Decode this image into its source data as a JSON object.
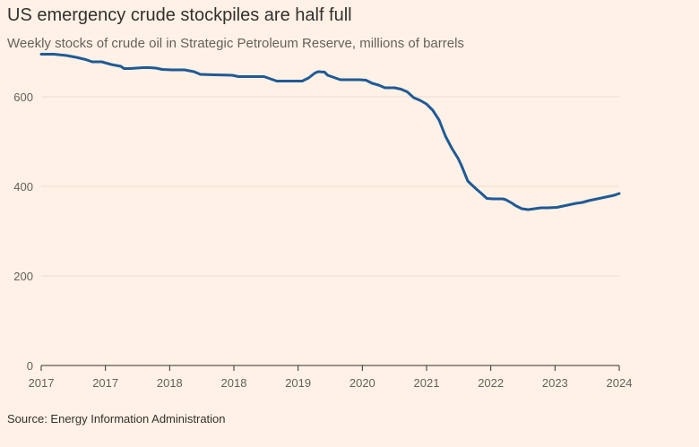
{
  "header": {
    "title": "US emergency crude stockpiles are half full",
    "subtitle": "Weekly stocks of crude oil in Strategic Petroleum Reserve, millions of barrels"
  },
  "footer": {
    "source": "Source: Energy Information Administration"
  },
  "colors": {
    "background": "#FFF1E5",
    "line": "#1F5A96",
    "grid": "#E9DED5",
    "axis": "#33302E",
    "text": "#66605C"
  },
  "chart_data": {
    "type": "line",
    "title": "US emergency crude stockpiles are half full",
    "subtitle": "Weekly stocks of crude oil in Strategic Petroleum Reserve, millions of barrels",
    "xlabel": "",
    "ylabel": "",
    "ylim": [
      0,
      700
    ],
    "grid": true,
    "x_tick_labels": [
      "2017",
      "2017",
      "2018",
      "2018",
      "2019",
      "2020",
      "2021",
      "2022",
      "2023",
      "2024"
    ],
    "y_ticks": [
      0,
      200,
      400,
      600
    ],
    "y_tick_labels": [
      "0",
      "200",
      "400",
      "600"
    ],
    "series": [
      {
        "values": [
          [
            2016.5,
            695
          ],
          [
            2016.7,
            695
          ],
          [
            2016.9,
            692
          ],
          [
            2017.05,
            688
          ],
          [
            2017.2,
            683
          ],
          [
            2017.3,
            678
          ],
          [
            2017.45,
            678
          ],
          [
            2017.6,
            672
          ],
          [
            2017.75,
            668
          ],
          [
            2017.8,
            663
          ],
          [
            2017.9,
            663
          ],
          [
            2018.0,
            664
          ],
          [
            2018.1,
            665
          ],
          [
            2018.2,
            665
          ],
          [
            2018.3,
            664
          ],
          [
            2018.4,
            661
          ],
          [
            2018.55,
            660
          ],
          [
            2018.75,
            660
          ],
          [
            2018.9,
            656
          ],
          [
            2019.0,
            650
          ],
          [
            2019.2,
            649
          ],
          [
            2019.5,
            648
          ],
          [
            2019.6,
            645
          ],
          [
            2019.75,
            645
          ],
          [
            2020.0,
            645
          ],
          [
            2020.1,
            640
          ],
          [
            2020.2,
            635
          ],
          [
            2020.4,
            635
          ],
          [
            2020.6,
            635
          ],
          [
            2020.7,
            642
          ],
          [
            2020.8,
            653
          ],
          [
            2020.85,
            656
          ],
          [
            2020.95,
            655
          ],
          [
            2021.0,
            648
          ],
          [
            2021.1,
            643
          ],
          [
            2021.2,
            638
          ],
          [
            2021.35,
            638
          ],
          [
            2021.5,
            638
          ],
          [
            2021.6,
            637
          ],
          [
            2021.7,
            630
          ],
          [
            2021.8,
            626
          ],
          [
            2021.9,
            620
          ],
          [
            2022.05,
            620
          ],
          [
            2022.15,
            617
          ],
          [
            2022.25,
            611
          ],
          [
            2022.35,
            598
          ],
          [
            2022.45,
            592
          ],
          [
            2022.55,
            584
          ],
          [
            2022.65,
            570
          ],
          [
            2022.75,
            548
          ],
          [
            2022.85,
            512
          ],
          [
            2022.95,
            485
          ],
          [
            2023.05,
            462
          ],
          [
            2023.1,
            447
          ],
          [
            2023.2,
            412
          ],
          [
            2023.25,
            405
          ],
          [
            2023.35,
            392
          ],
          [
            2023.4,
            386
          ],
          [
            2023.5,
            373
          ],
          [
            2023.6,
            372
          ],
          [
            2023.75,
            372
          ],
          [
            2023.8,
            370
          ],
          [
            2023.9,
            362
          ],
          [
            2023.95,
            357
          ],
          [
            2024.05,
            350
          ],
          [
            2024.15,
            348
          ],
          [
            2024.25,
            350
          ],
          [
            2024.35,
            352
          ],
          [
            2024.45,
            352
          ],
          [
            2024.6,
            353
          ],
          [
            2024.7,
            356
          ],
          [
            2024.8,
            359
          ],
          [
            2024.9,
            362
          ],
          [
            2025.0,
            364
          ],
          [
            2025.1,
            368
          ],
          [
            2025.2,
            371
          ],
          [
            2025.3,
            374
          ],
          [
            2025.4,
            377
          ],
          [
            2025.5,
            380
          ],
          [
            2025.58,
            384
          ]
        ]
      }
    ]
  }
}
